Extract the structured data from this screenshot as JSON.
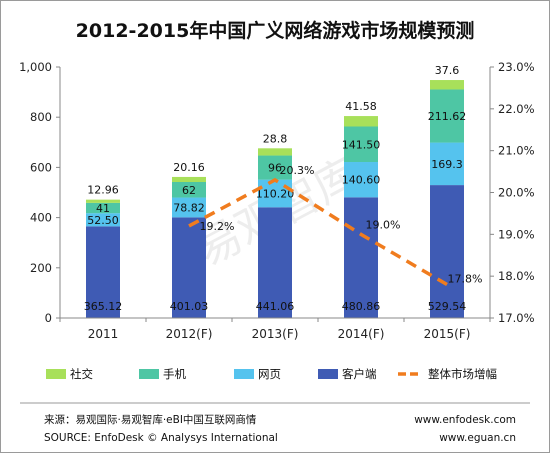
{
  "title": "2012-2015年中国广义网络游戏市场规模预测",
  "chart_data": {
    "type": "bar",
    "stacked": true,
    "categories": [
      "2011",
      "2012(F)",
      "2013(F)",
      "2014(F)",
      "2015(F)"
    ],
    "series": [
      {
        "name": "客户端",
        "color": "#3f5bb4",
        "values": [
          365.12,
          401.03,
          441.06,
          480.86,
          529.54
        ],
        "labels": [
          "365.12",
          "401.03",
          "441.06",
          "480.86",
          "529.54"
        ]
      },
      {
        "name": "网页",
        "color": "#55c3ee",
        "values": [
          52.5,
          78.82,
          110.2,
          140.6,
          169.3
        ],
        "labels": [
          "52.50",
          "78.82",
          "110.20",
          "140.60",
          "169.3"
        ]
      },
      {
        "name": "手机",
        "color": "#4ec6a4",
        "values": [
          41,
          62,
          96,
          141.5,
          211.62
        ],
        "labels": [
          "41",
          "62",
          "96",
          "141.50",
          "211.62"
        ]
      },
      {
        "name": "社交",
        "color": "#a8e05a",
        "values": [
          12.96,
          20.16,
          28.8,
          41.58,
          37.6
        ],
        "labels": [
          "12.96",
          "20.16",
          "28.8",
          "41.58",
          "37.6"
        ]
      }
    ],
    "line": {
      "name": "整体市场增幅",
      "color": "#f07c1e",
      "axis": "right",
      "x": [
        "2012(F)",
        "2013(F)",
        "2014(F)",
        "2015(F)"
      ],
      "values": [
        19.2,
        20.3,
        19.0,
        17.8
      ],
      "labels": [
        "19.2%",
        "20.3%",
        "19.0%",
        "17.8%"
      ]
    },
    "y_left": {
      "min": 0,
      "max": 1000,
      "ticks": [
        0,
        200,
        400,
        600,
        800,
        1000
      ],
      "tick_labels": [
        "0",
        "200",
        "400",
        "600",
        "800",
        "1,000"
      ]
    },
    "y_right": {
      "min": 17,
      "max": 23,
      "ticks": [
        17,
        18,
        19,
        20,
        21,
        22,
        23
      ],
      "tick_labels": [
        "17.0%",
        "18.0%",
        "19.0%",
        "20.0%",
        "21.0%",
        "22.0%",
        "23.0%"
      ]
    },
    "grid": false,
    "legend_position": "bottom"
  },
  "legend": [
    "社交",
    "手机",
    "网页",
    "客户端",
    "整体市场增幅"
  ],
  "watermark": "易观智库",
  "footer": {
    "source_cn": "来源：易观国际·易观智库·eBI中国互联网商情",
    "source_en": "SOURCE: EnfoDesk © Analysys  International",
    "url1": "www.enfodesk.com",
    "url2": "www.eguan.cn"
  }
}
